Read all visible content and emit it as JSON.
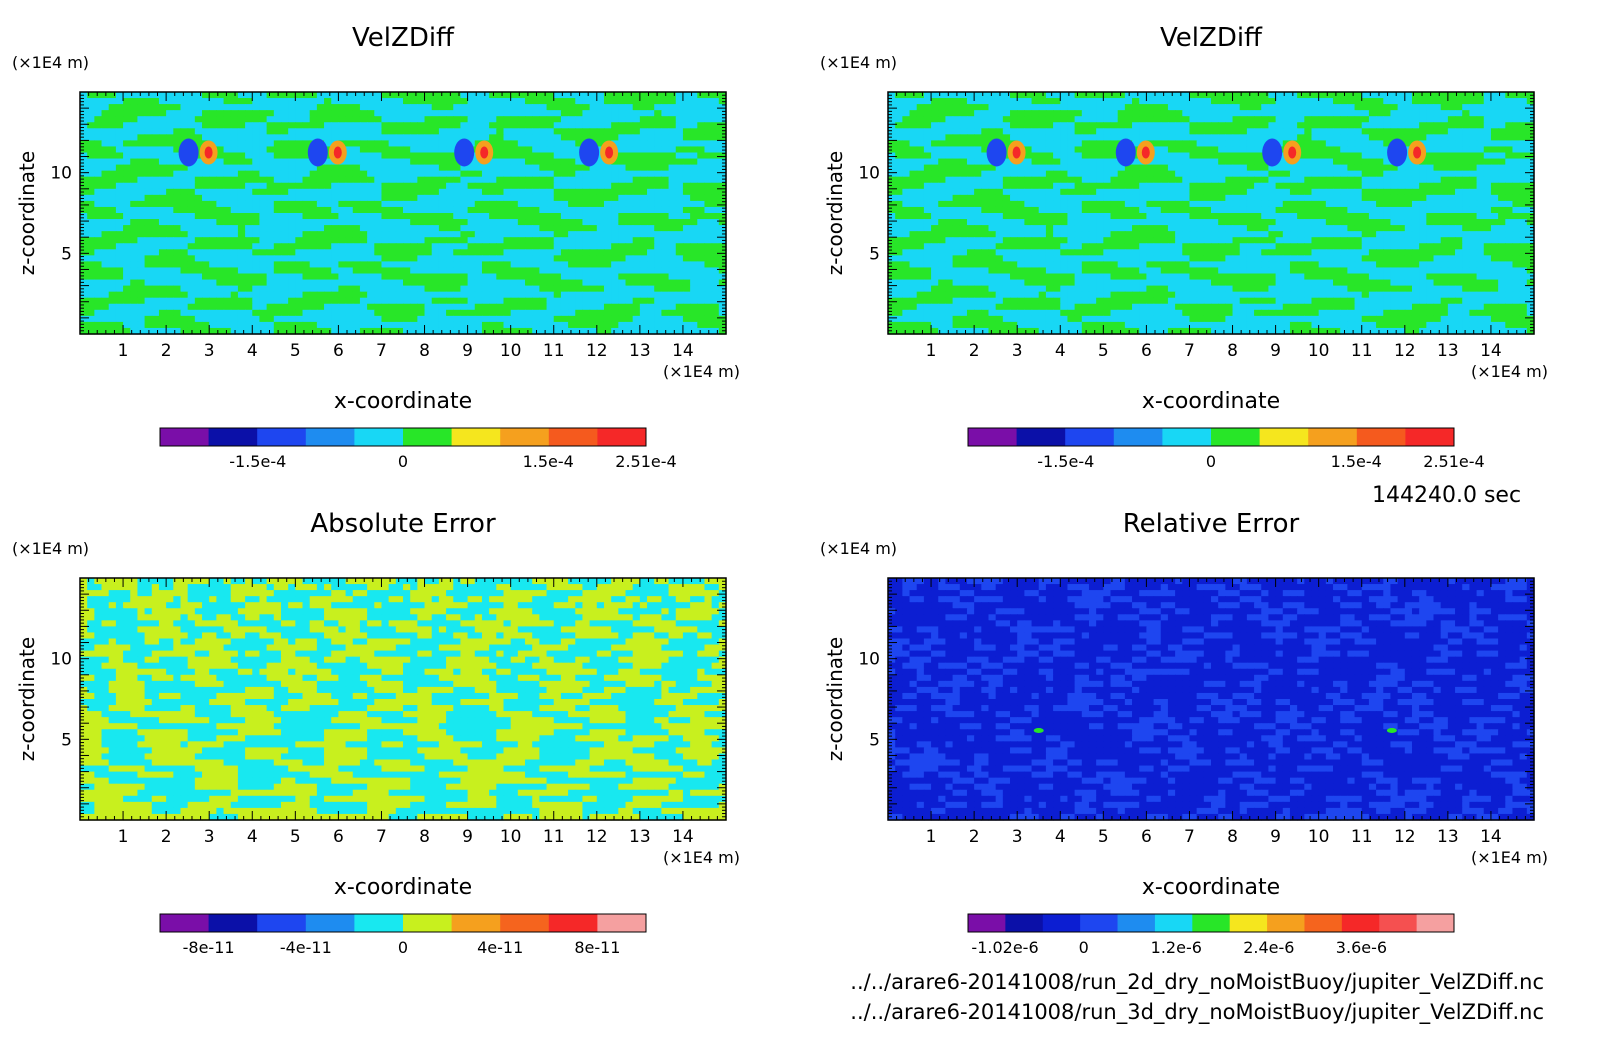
{
  "time_label": "144240.0 sec",
  "file_paths": [
    "../../arare6-20141008/run_2d_dry_noMoistBuoy/jupiter_VelZDiff.nc",
    "../../arare6-20141008/run_3d_dry_noMoistBuoy/jupiter_VelZDiff.nc"
  ],
  "chart_data": [
    {
      "type": "heatmap",
      "title": "VelZDiff",
      "xlabel": "x-coordinate",
      "ylabel": "z-coordinate",
      "xunit": "(×1E4 m)",
      "yunit": "(×1E4 m)",
      "xlim": [
        0,
        15
      ],
      "ylim": [
        0,
        15
      ],
      "xticks": [
        "1",
        "2",
        "3",
        "4",
        "5",
        "6",
        "7",
        "8",
        "9",
        "10",
        "11",
        "12",
        "13",
        "14"
      ],
      "yticks": [
        "5",
        "10"
      ],
      "pattern": "velzdiff",
      "colorbar": {
        "colors": [
          "#7a0ea8",
          "#0b10a8",
          "#1e46f0",
          "#1e8cf0",
          "#18d7f5",
          "#28e628",
          "#f5e61e",
          "#f5a01e",
          "#f55a1e",
          "#f52828"
        ],
        "ticks": [
          "-1.5e-4",
          "0",
          "1.5e-4",
          "2.51e-4"
        ],
        "tick_values": [
          -0.00015,
          0,
          0.00015,
          0.000251
        ],
        "range": [
          -0.000251,
          0.000251
        ]
      }
    },
    {
      "type": "heatmap",
      "title": "VelZDiff",
      "xlabel": "x-coordinate",
      "ylabel": "z-coordinate",
      "xunit": "(×1E4 m)",
      "yunit": "(×1E4 m)",
      "xlim": [
        0,
        15
      ],
      "ylim": [
        0,
        15
      ],
      "xticks": [
        "1",
        "2",
        "3",
        "4",
        "5",
        "6",
        "7",
        "8",
        "9",
        "10",
        "11",
        "12",
        "13",
        "14"
      ],
      "yticks": [
        "5",
        "10"
      ],
      "pattern": "velzdiff",
      "colorbar": {
        "colors": [
          "#7a0ea8",
          "#0b10a8",
          "#1e46f0",
          "#1e8cf0",
          "#18d7f5",
          "#28e628",
          "#f5e61e",
          "#f5a01e",
          "#f55a1e",
          "#f52828"
        ],
        "ticks": [
          "-1.5e-4",
          "0",
          "1.5e-4",
          "2.51e-4"
        ],
        "tick_values": [
          -0.00015,
          0,
          0.00015,
          0.000251
        ],
        "range": [
          -0.000251,
          0.000251
        ]
      }
    },
    {
      "type": "heatmap",
      "title": "Absolute Error",
      "xlabel": "x-coordinate",
      "ylabel": "z-coordinate",
      "xunit": "(×1E4 m)",
      "yunit": "(×1E4 m)",
      "xlim": [
        0,
        15
      ],
      "ylim": [
        0,
        15
      ],
      "xticks": [
        "1",
        "2",
        "3",
        "4",
        "5",
        "6",
        "7",
        "8",
        "9",
        "10",
        "11",
        "12",
        "13",
        "14"
      ],
      "yticks": [
        "5",
        "10"
      ],
      "pattern": "abserr",
      "colorbar": {
        "colors": [
          "#7a0ea8",
          "#0b10a8",
          "#1e46f0",
          "#1e8cf0",
          "#18e8f0",
          "#c8f01e",
          "#f5a01e",
          "#f5641e",
          "#f52828",
          "#f5a0a0"
        ],
        "ticks": [
          "-8e-11",
          "-4e-11",
          "0",
          "4e-11",
          "8e-11"
        ],
        "tick_values": [
          -8e-11,
          -4e-11,
          0,
          4e-11,
          8e-11
        ],
        "range": [
          -1e-10,
          1e-10
        ]
      }
    },
    {
      "type": "heatmap",
      "title": "Relative Error",
      "xlabel": "x-coordinate",
      "ylabel": "z-coordinate",
      "xunit": "(×1E4 m)",
      "yunit": "(×1E4 m)",
      "xlim": [
        0,
        15
      ],
      "ylim": [
        0,
        15
      ],
      "xticks": [
        "1",
        "2",
        "3",
        "4",
        "5",
        "6",
        "7",
        "8",
        "9",
        "10",
        "11",
        "12",
        "13",
        "14"
      ],
      "yticks": [
        "5",
        "10"
      ],
      "pattern": "relerr",
      "colorbar": {
        "colors": [
          "#7a0ea8",
          "#0b10a8",
          "#0c1ed2",
          "#1e46f0",
          "#1e8cf0",
          "#18d7f5",
          "#28e628",
          "#f5e61e",
          "#f5a01e",
          "#f5641e",
          "#f52828",
          "#f55050",
          "#f5a0a0"
        ],
        "ticks": [
          "-1.02e-6",
          "0",
          "1.2e-6",
          "2.4e-6",
          "3.6e-6"
        ],
        "tick_values": [
          -1.02e-06,
          0,
          1.2e-06,
          2.4e-06,
          3.6e-06
        ],
        "range": [
          -1.5e-06,
          4.8e-06
        ]
      }
    }
  ]
}
